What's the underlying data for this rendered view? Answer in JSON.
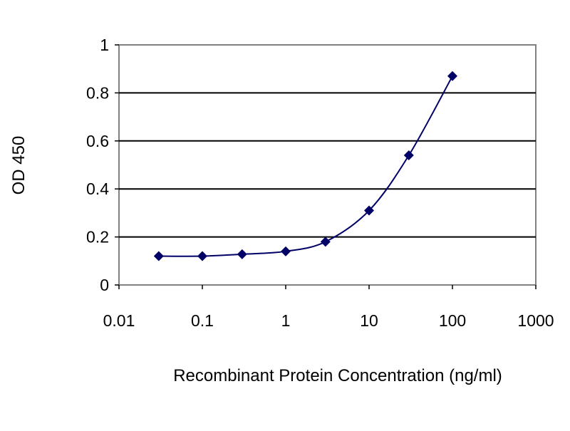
{
  "chart_data": {
    "type": "line",
    "title": "",
    "xlabel": "Recombinant Protein Concentration (ng/ml)",
    "ylabel": "OD 450",
    "x_scale": "log",
    "xlim": [
      0.01,
      1000
    ],
    "ylim": [
      0,
      1
    ],
    "x_ticks": [
      "0.01",
      "0.1",
      "1",
      "10",
      "100",
      "1000"
    ],
    "y_ticks": [
      "0",
      "0.2",
      "0.4",
      "0.6",
      "0.8",
      "1"
    ],
    "grid": "horizontal",
    "series": [
      {
        "x": [
          0.03,
          0.1,
          0.3,
          1,
          3,
          10,
          30,
          100
        ],
        "y": [
          0.12,
          0.12,
          0.128,
          0.14,
          0.18,
          0.31,
          0.54,
          0.87
        ],
        "color": "#000066",
        "marker": "diamond",
        "smooth": true
      }
    ]
  }
}
